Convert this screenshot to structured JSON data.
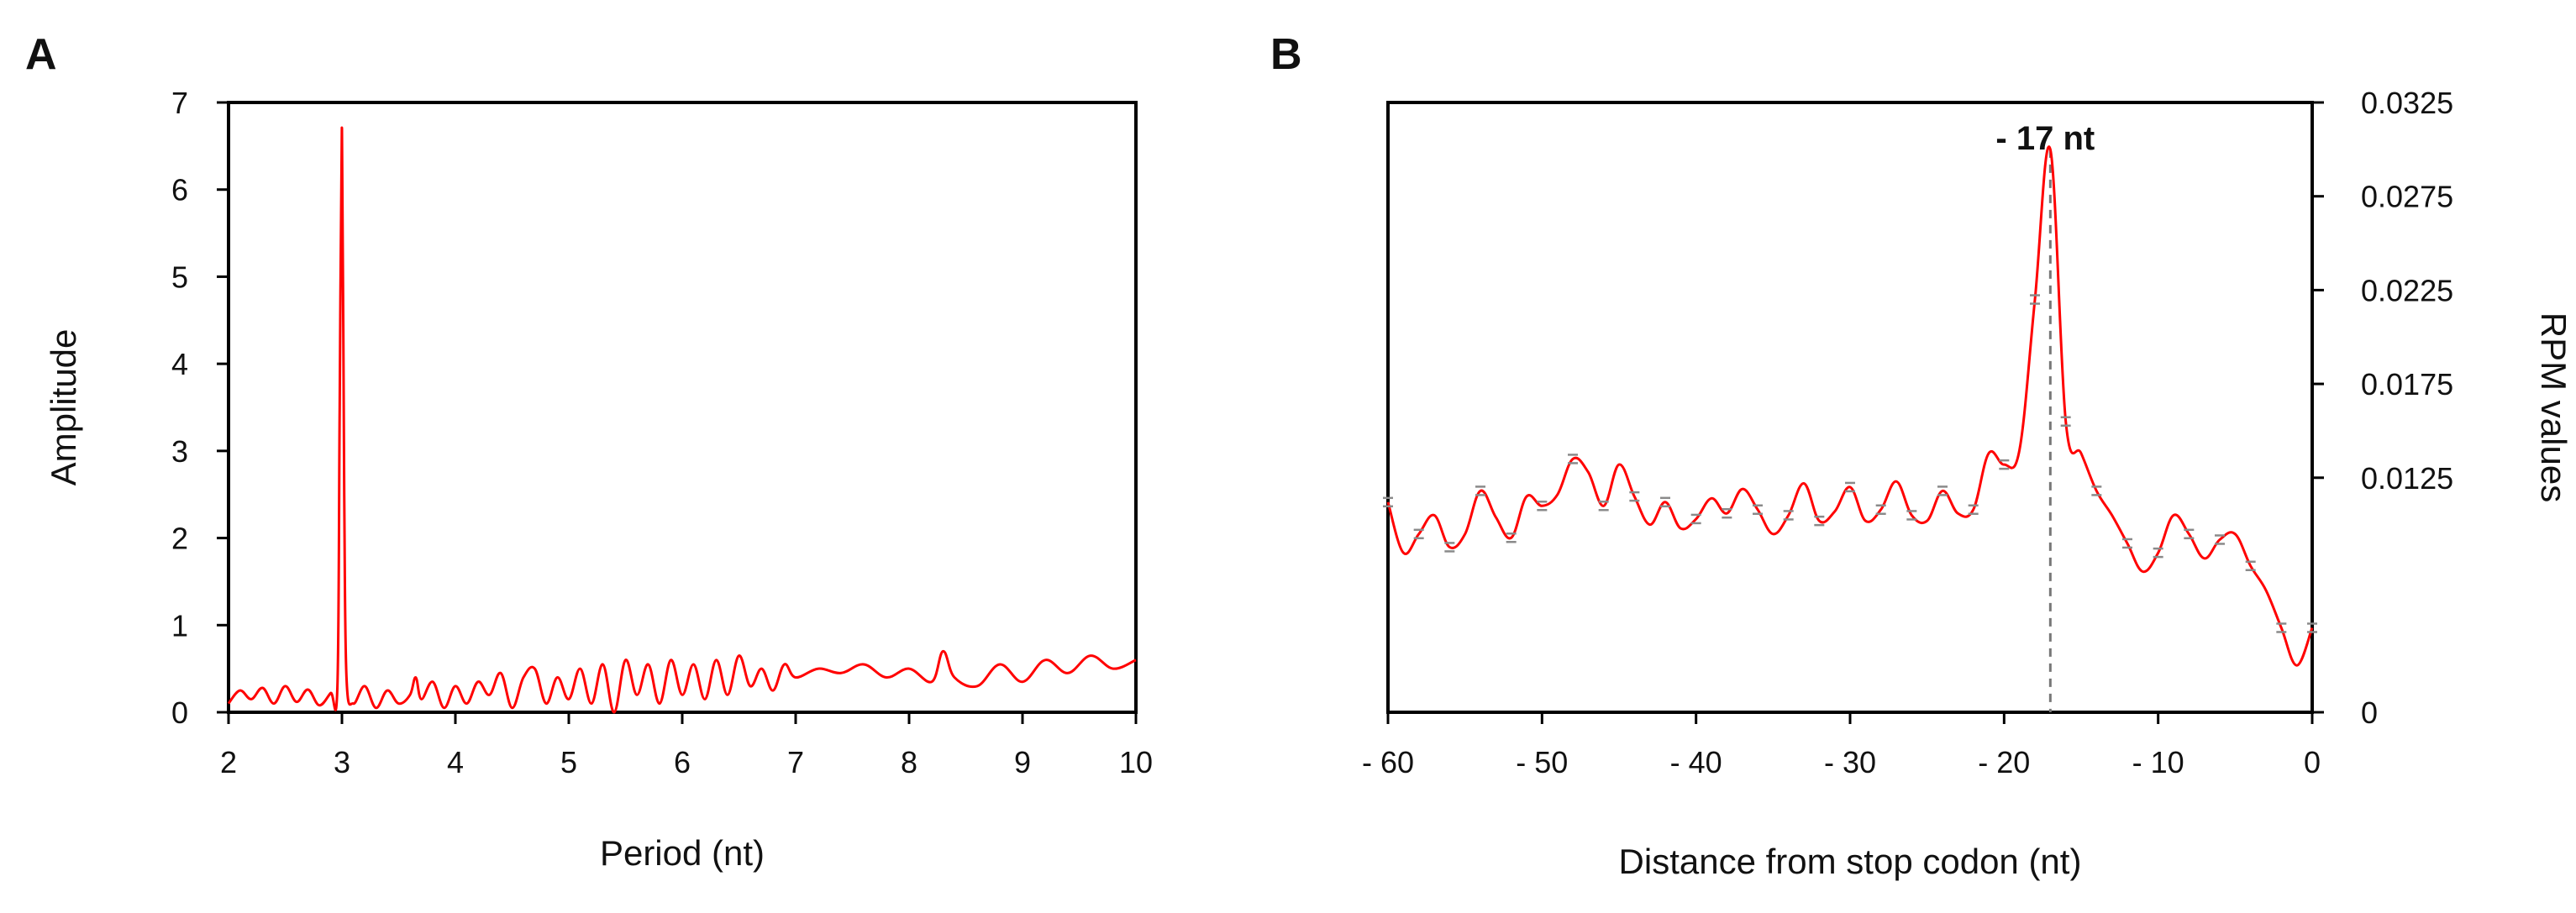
{
  "chart_data": [
    {
      "type": "line",
      "panel_label": "A",
      "xlabel": "Period (nt)",
      "ylabel": "Amplitude",
      "xlim": [
        2,
        10
      ],
      "ylim": [
        0,
        7
      ],
      "x_ticks": [
        "2",
        "3",
        "4",
        "5",
        "6",
        "7",
        "8",
        "9",
        "10"
      ],
      "y_ticks": [
        "0",
        "1",
        "2",
        "3",
        "4",
        "5",
        "6",
        "7"
      ],
      "color": "#ff0000",
      "series": [
        {
          "x": [
            2.0,
            2.1,
            2.2,
            2.3,
            2.4,
            2.5,
            2.6,
            2.7,
            2.8,
            2.9,
            2.96,
            2.98,
            3.0,
            3.02,
            3.04,
            3.1,
            3.2,
            3.3,
            3.4,
            3.5,
            3.6,
            3.65,
            3.7,
            3.8,
            3.9,
            4.0,
            4.1,
            4.2,
            4.3,
            4.4,
            4.5,
            4.6,
            4.7,
            4.8,
            4.9,
            5.0,
            5.1,
            5.2,
            5.3,
            5.4,
            5.5,
            5.6,
            5.7,
            5.8,
            5.9,
            6.0,
            6.1,
            6.2,
            6.3,
            6.4,
            6.5,
            6.6,
            6.7,
            6.8,
            6.9,
            7.0,
            7.2,
            7.4,
            7.6,
            7.8,
            8.0,
            8.2,
            8.3,
            8.4,
            8.6,
            8.8,
            9.0,
            9.2,
            9.4,
            9.6,
            9.8,
            10.0
          ],
          "y": [
            0.1,
            0.25,
            0.15,
            0.28,
            0.1,
            0.3,
            0.12,
            0.26,
            0.08,
            0.22,
            0.3,
            3.5,
            6.7,
            2.5,
            0.4,
            0.1,
            0.3,
            0.05,
            0.25,
            0.1,
            0.2,
            0.4,
            0.15,
            0.35,
            0.05,
            0.3,
            0.1,
            0.35,
            0.2,
            0.45,
            0.05,
            0.4,
            0.5,
            0.1,
            0.4,
            0.15,
            0.5,
            0.1,
            0.55,
            0.0,
            0.6,
            0.2,
            0.55,
            0.1,
            0.6,
            0.2,
            0.55,
            0.15,
            0.6,
            0.2,
            0.65,
            0.3,
            0.5,
            0.25,
            0.55,
            0.4,
            0.5,
            0.45,
            0.55,
            0.4,
            0.5,
            0.35,
            0.7,
            0.4,
            0.3,
            0.55,
            0.35,
            0.6,
            0.45,
            0.65,
            0.5,
            0.6
          ]
        }
      ]
    },
    {
      "type": "line",
      "panel_label": "B",
      "xlabel": "Distance from stop codon (nt)",
      "ylabel": "RPM values",
      "y_axis_side": "right",
      "xlim": [
        -60,
        0
      ],
      "ylim": [
        0,
        0.0325
      ],
      "x_ticks": [
        "- 60",
        "- 50",
        "- 40",
        "- 30",
        "- 20",
        "- 10",
        "0"
      ],
      "y_ticks": [
        "0",
        "0.0125",
        "0.0175",
        "0.0225",
        "0.0275",
        "0.0325"
      ],
      "y_tick_values": [
        0,
        0.0125,
        0.0175,
        0.0225,
        0.0275,
        0.0325
      ],
      "annotation": {
        "text": "- 17 nt",
        "x": -17
      },
      "color": "#ff0000",
      "series": [
        {
          "x": [
            -60,
            -59,
            -58,
            -57,
            -56,
            -55,
            -54,
            -53,
            -52,
            -51,
            -50,
            -49,
            -48,
            -47,
            -46,
            -45,
            -44,
            -43,
            -42,
            -41,
            -40,
            -39,
            -38,
            -37,
            -36,
            -35,
            -34,
            -33,
            -32,
            -31,
            -30,
            -29,
            -28,
            -27,
            -26,
            -25,
            -24,
            -23,
            -22,
            -21,
            -20,
            -19,
            -18,
            -17,
            -16,
            -15,
            -14,
            -13,
            -12,
            -11,
            -10,
            -9,
            -8,
            -7,
            -6,
            -5,
            -4,
            -3,
            -2,
            -1,
            0
          ],
          "y": [
            0.0112,
            0.0085,
            0.0095,
            0.0105,
            0.0088,
            0.0095,
            0.0118,
            0.0104,
            0.0093,
            0.0115,
            0.011,
            0.0116,
            0.0135,
            0.0128,
            0.011,
            0.0132,
            0.0115,
            0.01,
            0.0112,
            0.0098,
            0.0103,
            0.0114,
            0.0106,
            0.0119,
            0.0108,
            0.0095,
            0.0105,
            0.0122,
            0.0102,
            0.0107,
            0.012,
            0.0102,
            0.0108,
            0.0123,
            0.0105,
            0.0102,
            0.0118,
            0.0106,
            0.0108,
            0.0138,
            0.0132,
            0.014,
            0.022,
            0.03,
            0.0155,
            0.0138,
            0.0118,
            0.0105,
            0.009,
            0.0075,
            0.0085,
            0.0105,
            0.0095,
            0.0082,
            0.0092,
            0.0095,
            0.0078,
            0.0065,
            0.0045,
            0.0025,
            0.0045
          ]
        }
      ]
    }
  ]
}
